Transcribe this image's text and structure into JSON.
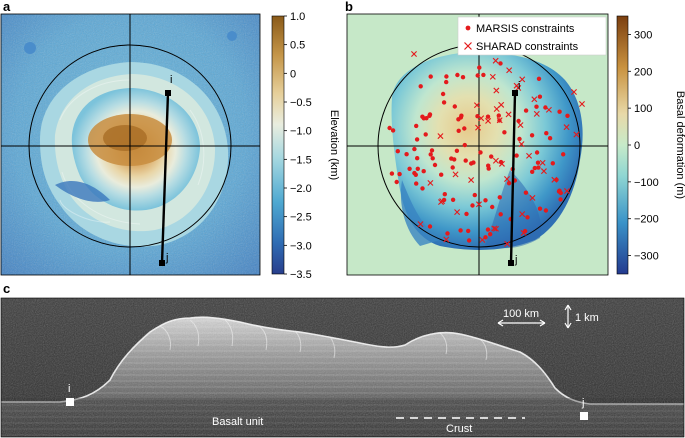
{
  "panels": {
    "a": {
      "label": "a",
      "colorbar": {
        "title": "Elevation (km)",
        "ticks": [
          "1.0",
          "0.5",
          "0",
          "−0.5",
          "−1.0",
          "−1.5",
          "−2.0",
          "−2.5",
          "−3.0",
          "−3.5"
        ]
      },
      "profile": {
        "start": "i",
        "end": "j"
      }
    },
    "b": {
      "label": "b",
      "legend": {
        "marsis": "MARSIS constraints",
        "sharad": "SHARAD constraints"
      },
      "colorbar": {
        "title": "Basal deformation (m)",
        "ticks": [
          "300",
          "200",
          "100",
          "0",
          "−100",
          "−200",
          "−300"
        ]
      },
      "profile": {
        "start": "i",
        "end": "j"
      }
    },
    "c": {
      "label": "c",
      "scale_horizontal": "100 km",
      "scale_vertical": "1 km",
      "unit_label": "Basalt unit",
      "crust_label": "Crust",
      "marker_i": "i",
      "marker_j": "j"
    }
  },
  "chart_data": [
    {
      "type": "heatmap",
      "panel": "a",
      "title": "",
      "colorbar_label": "Elevation (km)",
      "colorbar_range": [
        -3.5,
        1.0
      ],
      "colorbar_ticks": [
        1.0,
        0.5,
        0,
        -0.5,
        -1.0,
        -1.5,
        -2.0,
        -2.5,
        -3.0,
        -3.5
      ],
      "colors": {
        "high": "#8a5a19",
        "mid_high": "#e2c690",
        "mid": "#e6ece0",
        "mid_low": "#5bb4d2",
        "low": "#2a4f9c"
      }
    },
    {
      "type": "scatter",
      "panel": "b",
      "title": "",
      "colorbar_label": "Basal deformation (m)",
      "colorbar_range": [
        -350,
        350
      ],
      "colorbar_ticks": [
        300,
        200,
        100,
        0,
        -100,
        -200,
        -300
      ],
      "series": [
        {
          "name": "MARSIS constraints",
          "marker": "dot",
          "color": "#e41a1c"
        },
        {
          "name": "SHARAD constraints",
          "marker": "cross",
          "color": "#e41a1c"
        }
      ]
    }
  ]
}
